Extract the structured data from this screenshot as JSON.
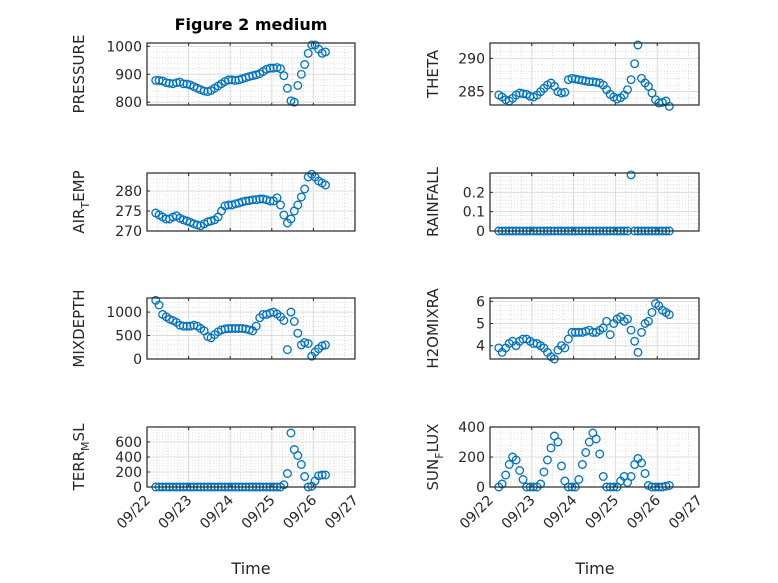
{
  "figure_title": "Figure 2 medium",
  "xlabel": "Time",
  "marker_color": "#0072BD",
  "chart_data": {
    "type": "scatter",
    "x_unit": "days since 09/22 00:00",
    "x": [
      0.21,
      0.29,
      0.375,
      0.46,
      0.54,
      0.625,
      0.71,
      0.79,
      0.875,
      0.96,
      1.04,
      1.125,
      1.21,
      1.29,
      1.375,
      1.46,
      1.54,
      1.625,
      1.71,
      1.79,
      1.875,
      1.96,
      2.04,
      2.125,
      2.21,
      2.29,
      2.375,
      2.46,
      2.54,
      2.625,
      2.71,
      2.79,
      2.875,
      2.96,
      3.04,
      3.125,
      3.21,
      3.29,
      3.375,
      3.46,
      3.54,
      3.625,
      3.71,
      3.79,
      3.875,
      3.96,
      4.04,
      4.125,
      4.21,
      4.29
    ],
    "xlim": [
      0,
      5
    ],
    "xticks": [
      0,
      1,
      2,
      3,
      4,
      5
    ],
    "xtick_labels": [
      "09/22",
      "09/23",
      "09/24",
      "09/25",
      "09/26",
      "09/27"
    ],
    "grid": "on (major + minor)",
    "panels": [
      {
        "ylabel": "PRESSURE",
        "ylim": [
          790,
          1012
        ],
        "yticks": [
          800,
          900,
          1000
        ],
        "ytick_labels": [
          "800",
          "900",
          "1000"
        ],
        "values": [
          878,
          878,
          876,
          870,
          868,
          866,
          870,
          872,
          866,
          865,
          862,
          856,
          850,
          845,
          840,
          838,
          842,
          850,
          858,
          866,
          874,
          880,
          880,
          878,
          880,
          884,
          888,
          892,
          895,
          898,
          902,
          910,
          918,
          922,
          922,
          924,
          920,
          895,
          850,
          805,
          800,
          860,
          900,
          935,
          975,
          1005,
          1005,
          990,
          975,
          980
        ]
      },
      {
        "ylabel": "THETA",
        "ylim": [
          283,
          292.3
        ],
        "yticks": [
          285,
          290
        ],
        "ytick_labels": [
          "285",
          "290"
        ],
        "values": [
          284.5,
          284.2,
          283.8,
          283.6,
          284,
          284.5,
          284.8,
          284.7,
          284.6,
          284.3,
          284.2,
          284.5,
          285,
          285.5,
          286,
          286.3,
          285.8,
          285,
          284.8,
          284.9,
          286.8,
          287,
          286.9,
          286.8,
          286.7,
          286.6,
          286.5,
          286.5,
          286.4,
          286.3,
          286,
          285.3,
          284.6,
          284.2,
          283.9,
          284.1,
          284.5,
          285.3,
          286.8,
          289.2,
          292,
          287,
          286.3,
          285.8,
          284.8,
          283.8,
          283.3,
          283.4,
          283.6,
          282.8
        ]
      },
      {
        "ylabel": "AIR_TEMP",
        "ylim": [
          270,
          284.5
        ],
        "yticks": [
          270,
          275,
          280
        ],
        "ytick_labels": [
          "270",
          "275",
          "280"
        ],
        "values": [
          274.5,
          274,
          273.5,
          273,
          273,
          273.5,
          273.8,
          273.2,
          272.8,
          272.5,
          272.2,
          271.8,
          271.5,
          271.3,
          271.8,
          272.3,
          272.5,
          272.8,
          273.5,
          275,
          276.3,
          276.5,
          276.5,
          276.8,
          277,
          277.3,
          277.5,
          277.6,
          277.8,
          277.8,
          278,
          278,
          277.8,
          277.5,
          277.5,
          278.3,
          276.5,
          274,
          272,
          273,
          275,
          276.5,
          278.5,
          280.5,
          283.5,
          284.2,
          283.5,
          282.5,
          282,
          281.5
        ]
      },
      {
        "ylabel": "RAINFALL",
        "ylim": [
          0,
          0.3
        ],
        "yticks": [
          0,
          0.1,
          0.2
        ],
        "ytick_labels": [
          "0",
          "0.1",
          "0.2"
        ],
        "values": [
          0,
          0,
          0,
          0,
          0,
          0,
          0,
          0,
          0,
          0,
          0,
          0,
          0,
          0,
          0,
          0,
          0,
          0,
          0,
          0,
          0,
          0,
          0,
          0,
          0,
          0,
          0,
          0,
          0,
          0,
          0,
          0,
          0,
          0,
          0,
          0,
          0,
          0,
          0.29,
          0,
          0,
          0,
          0,
          0,
          0,
          0,
          0,
          0,
          0,
          0
        ]
      },
      {
        "ylabel": "MIXDEPTH",
        "ylim": [
          0,
          1300
        ],
        "yticks": [
          0,
          500,
          1000
        ],
        "ytick_labels": [
          "0",
          "500",
          "1000"
        ],
        "values": [
          1250,
          1150,
          950,
          900,
          850,
          820,
          780,
          720,
          700,
          700,
          700,
          720,
          700,
          650,
          600,
          480,
          450,
          520,
          580,
          620,
          640,
          650,
          650,
          650,
          650,
          650,
          640,
          620,
          600,
          700,
          880,
          950,
          950,
          980,
          1000,
          960,
          900,
          820,
          200,
          1000,
          800,
          550,
          300,
          350,
          330,
          60,
          150,
          220,
          280,
          300
        ]
      },
      {
        "ylabel": "H2OMIXRA",
        "ylim": [
          3.4,
          6.15
        ],
        "yticks": [
          4,
          5,
          6
        ],
        "ytick_labels": [
          "4",
          "5",
          "6"
        ],
        "values": [
          3.9,
          3.7,
          3.9,
          4.1,
          4.2,
          4.0,
          4.2,
          4.3,
          4.3,
          4.2,
          4.1,
          4.1,
          4.0,
          3.9,
          3.7,
          3.5,
          3.4,
          3.8,
          4.0,
          3.9,
          4.3,
          4.6,
          4.6,
          4.6,
          4.6,
          4.65,
          4.7,
          4.6,
          4.6,
          4.7,
          4.8,
          5.1,
          4.5,
          5.0,
          5.2,
          5.3,
          5.1,
          5.2,
          4.7,
          4.2,
          3.7,
          4.6,
          5.0,
          5.1,
          5.5,
          5.9,
          5.8,
          5.6,
          5.5,
          5.4
        ]
      },
      {
        "ylabel": "TERR_MSL",
        "ylim": [
          0,
          800
        ],
        "yticks": [
          0,
          200,
          400,
          600
        ],
        "ytick_labels": [
          "0",
          "200",
          "400",
          "600"
        ],
        "values": [
          0,
          0,
          0,
          0,
          0,
          0,
          0,
          0,
          0,
          0,
          0,
          0,
          0,
          0,
          0,
          0,
          0,
          0,
          0,
          0,
          0,
          0,
          0,
          0,
          0,
          0,
          0,
          0,
          0,
          0,
          0,
          0,
          0,
          0,
          0,
          0,
          0,
          30,
          180,
          720,
          500,
          420,
          300,
          140,
          0,
          10,
          80,
          150,
          160,
          160
        ]
      },
      {
        "ylabel": "SUN_FLUX",
        "ylim": [
          0,
          400
        ],
        "yticks": [
          0,
          200,
          400
        ],
        "ytick_labels": [
          "0",
          "200",
          "400"
        ],
        "values": [
          0,
          20,
          80,
          150,
          200,
          180,
          110,
          50,
          0,
          0,
          0,
          0,
          20,
          100,
          180,
          260,
          340,
          300,
          140,
          40,
          0,
          0,
          0,
          50,
          150,
          230,
          300,
          360,
          320,
          220,
          70,
          0,
          0,
          0,
          0,
          40,
          70,
          30,
          70,
          150,
          190,
          160,
          90,
          10,
          0,
          0,
          0,
          0,
          5,
          10
        ]
      }
    ]
  }
}
